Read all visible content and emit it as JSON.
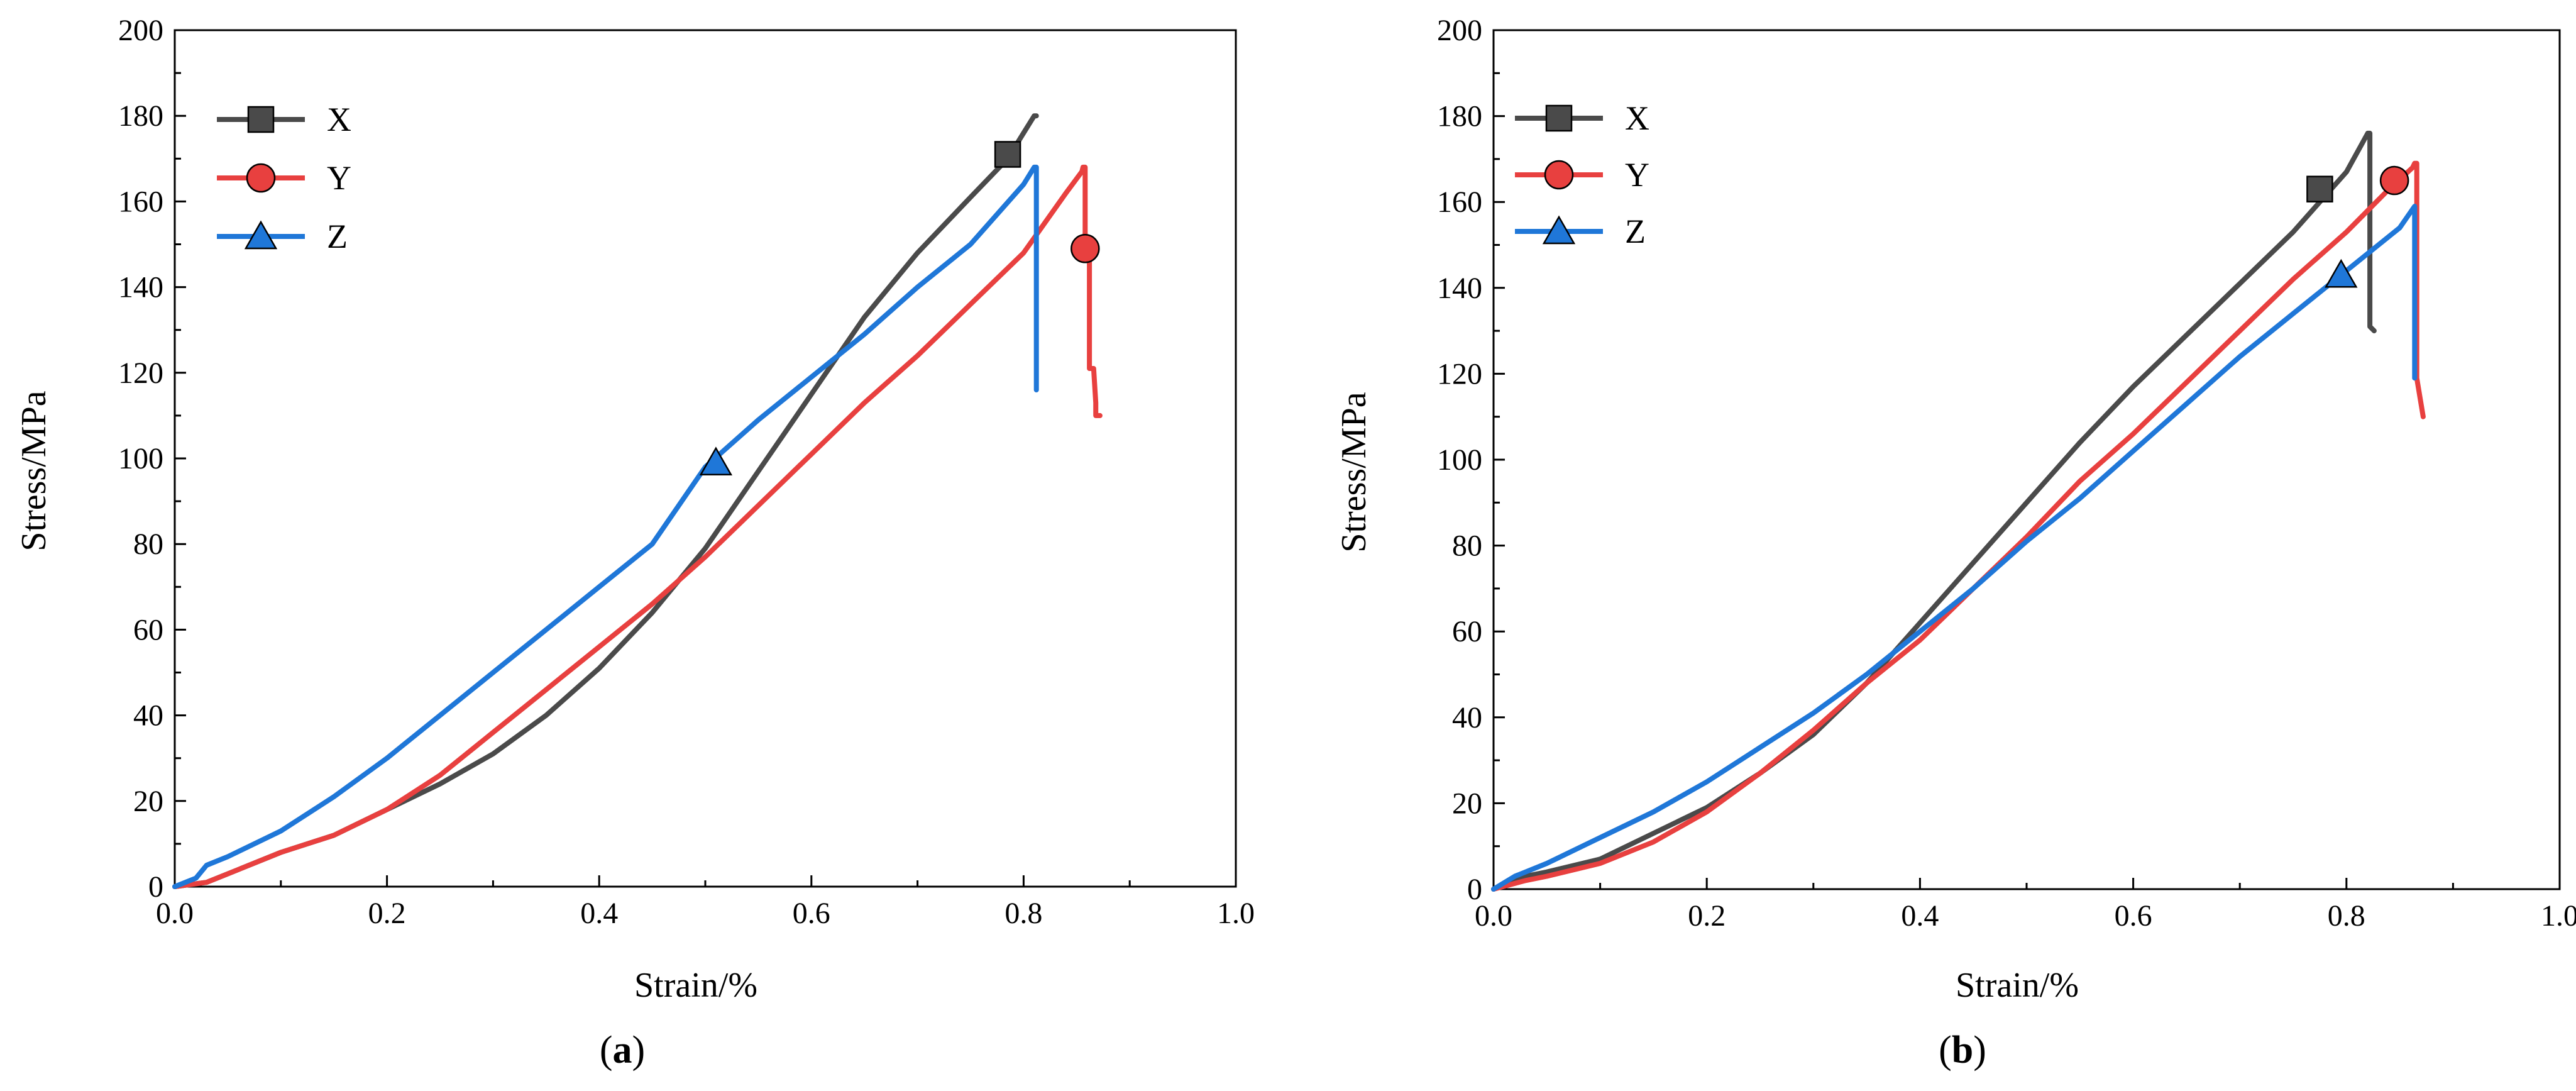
{
  "chart_data": [
    {
      "type": "line",
      "panel_label": "a",
      "caption": {
        "open": "(",
        "letter": "a",
        "close": ")"
      },
      "xlabel": "Strain/%",
      "ylabel": "Stress/MPa",
      "xlim": [
        0.0,
        1.0
      ],
      "ylim": [
        0,
        200
      ],
      "xticks": [
        "0.0",
        "0.2",
        "0.4",
        "0.6",
        "0.8",
        "1.0"
      ],
      "yticks": [
        "0",
        "20",
        "40",
        "60",
        "80",
        "100",
        "120",
        "140",
        "160",
        "180",
        "200"
      ],
      "legend_position": "top-left",
      "series": [
        {
          "name": "X",
          "color": "#4a4a4a",
          "marker": "square",
          "marker_point": [
            0.785,
            171
          ],
          "x": [
            0.0,
            0.03,
            0.06,
            0.1,
            0.15,
            0.2,
            0.25,
            0.3,
            0.35,
            0.4,
            0.45,
            0.5,
            0.55,
            0.6,
            0.65,
            0.7,
            0.75,
            0.785,
            0.8,
            0.81,
            0.812
          ],
          "y": [
            0,
            1,
            4,
            8,
            12,
            18,
            24,
            31,
            40,
            51,
            64,
            79,
            97,
            115,
            133,
            148,
            161,
            170,
            176,
            180,
            180
          ]
        },
        {
          "name": "Y",
          "color": "#e8403f",
          "marker": "circle",
          "marker_point": [
            0.858,
            149
          ],
          "x": [
            0.0,
            0.03,
            0.06,
            0.1,
            0.15,
            0.2,
            0.25,
            0.3,
            0.35,
            0.4,
            0.45,
            0.5,
            0.55,
            0.6,
            0.65,
            0.7,
            0.75,
            0.8,
            0.84,
            0.855,
            0.856,
            0.858,
            0.858,
            0.862,
            0.862,
            0.866,
            0.868,
            0.868,
            0.872
          ],
          "y": [
            0,
            1,
            4,
            8,
            12,
            18,
            26,
            36,
            46,
            56,
            66,
            77,
            89,
            101,
            113,
            124,
            136,
            148,
            162,
            167,
            168,
            168,
            149,
            149,
            121,
            121,
            113,
            110,
            110
          ]
        },
        {
          "name": "Z",
          "color": "#1f77d8",
          "marker": "triangle",
          "marker_point": [
            0.51,
            99
          ],
          "x": [
            0.0,
            0.02,
            0.03,
            0.05,
            0.1,
            0.15,
            0.2,
            0.25,
            0.3,
            0.35,
            0.4,
            0.45,
            0.5,
            0.55,
            0.6,
            0.65,
            0.7,
            0.75,
            0.8,
            0.81,
            0.812,
            0.812
          ],
          "y": [
            0,
            2,
            5,
            7,
            13,
            21,
            30,
            40,
            50,
            60,
            70,
            80,
            98,
            109,
            119,
            129,
            140,
            150,
            164,
            168,
            168,
            116
          ]
        }
      ]
    },
    {
      "type": "line",
      "panel_label": "b",
      "caption": {
        "open": "(",
        "letter": "b",
        "close": ")"
      },
      "xlabel": "Strain/%",
      "ylabel": "Stress/MPa",
      "xlim": [
        0.0,
        1.0
      ],
      "ylim": [
        0,
        200
      ],
      "xticks": [
        "0.0",
        "0.2",
        "0.4",
        "0.6",
        "0.8",
        "1.0"
      ],
      "yticks": [
        "0",
        "20",
        "40",
        "60",
        "80",
        "100",
        "120",
        "140",
        "160",
        "180",
        "200"
      ],
      "legend_position": "top-left",
      "series": [
        {
          "name": "X",
          "color": "#4a4a4a",
          "marker": "square",
          "marker_point": [
            0.775,
            163
          ],
          "x": [
            0.0,
            0.03,
            0.05,
            0.1,
            0.15,
            0.2,
            0.25,
            0.3,
            0.35,
            0.4,
            0.45,
            0.5,
            0.55,
            0.6,
            0.65,
            0.7,
            0.75,
            0.8,
            0.82,
            0.822,
            0.822,
            0.826
          ],
          "y": [
            0,
            3,
            4,
            7,
            13,
            19,
            27,
            36,
            48,
            62,
            76,
            90,
            104,
            117,
            129,
            141,
            153,
            167,
            176,
            176,
            131,
            130
          ]
        },
        {
          "name": "Y",
          "color": "#e8403f",
          "marker": "circle",
          "marker_point": [
            0.845,
            165
          ],
          "x": [
            0.0,
            0.03,
            0.05,
            0.1,
            0.15,
            0.2,
            0.25,
            0.3,
            0.35,
            0.4,
            0.45,
            0.5,
            0.55,
            0.6,
            0.65,
            0.7,
            0.75,
            0.8,
            0.84,
            0.862,
            0.864,
            0.866,
            0.866,
            0.87,
            0.872
          ],
          "y": [
            0,
            2,
            3,
            6,
            11,
            18,
            27,
            37,
            48,
            58,
            70,
            82,
            95,
            106,
            118,
            130,
            142,
            153,
            163,
            168,
            169,
            169,
            119,
            113,
            110
          ]
        },
        {
          "name": "Z",
          "color": "#1f77d8",
          "marker": "triangle",
          "marker_point": [
            0.795,
            143
          ],
          "x": [
            0.0,
            0.02,
            0.03,
            0.05,
            0.1,
            0.15,
            0.2,
            0.25,
            0.3,
            0.35,
            0.4,
            0.45,
            0.5,
            0.55,
            0.6,
            0.65,
            0.7,
            0.75,
            0.8,
            0.85,
            0.864,
            0.864
          ],
          "y": [
            0,
            3,
            4,
            6,
            12,
            18,
            25,
            33,
            41,
            50,
            60,
            70,
            81,
            91,
            102,
            113,
            124,
            134,
            144,
            154,
            159,
            119
          ]
        }
      ]
    }
  ]
}
